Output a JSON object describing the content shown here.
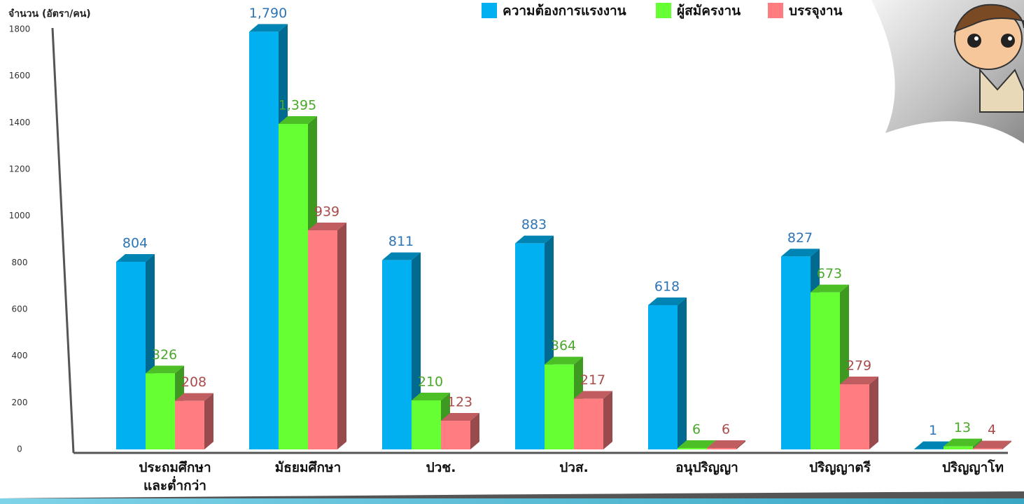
{
  "chart_data": {
    "type": "bar3d",
    "y_axis_label": "จำนวน (อัตรา/คน)",
    "categories": [
      "ประถมศึกษา\nและต่ำกว่า",
      "มัธยมศึกษา",
      "ปวช.",
      "ปวส.",
      "อนุปริญญา",
      "ปริญญาตรี",
      "ปริญญาโท"
    ],
    "series": [
      {
        "name": "ความต้องการแรงงาน",
        "color": "#00b0f0",
        "label_color": "#2e75b6",
        "values": [
          804,
          1790,
          811,
          883,
          618,
          827,
          1
        ],
        "value_labels": [
          "804",
          "1,790",
          "811",
          "883",
          "618",
          "827",
          "1"
        ]
      },
      {
        "name": "ผู้สมัครงาน",
        "color": "#66ff33",
        "label_color": "#4aa829",
        "values": [
          326,
          1395,
          210,
          364,
          6,
          673,
          13
        ],
        "value_labels": [
          "326",
          "1,395",
          "210",
          "364",
          "6",
          "673",
          "13"
        ]
      },
      {
        "name": "บรรจุงาน",
        "color": "#ff7c80",
        "label_color": "#a94c4c",
        "values": [
          208,
          939,
          123,
          217,
          6,
          279,
          4
        ],
        "value_labels": [
          "208",
          "939",
          "123",
          "217",
          "6",
          "279",
          "4"
        ]
      }
    ],
    "ylim": [
      0,
      1800
    ],
    "yticks": [
      0,
      200,
      400,
      600,
      800,
      1000,
      1200,
      1400,
      1600,
      1800
    ]
  }
}
